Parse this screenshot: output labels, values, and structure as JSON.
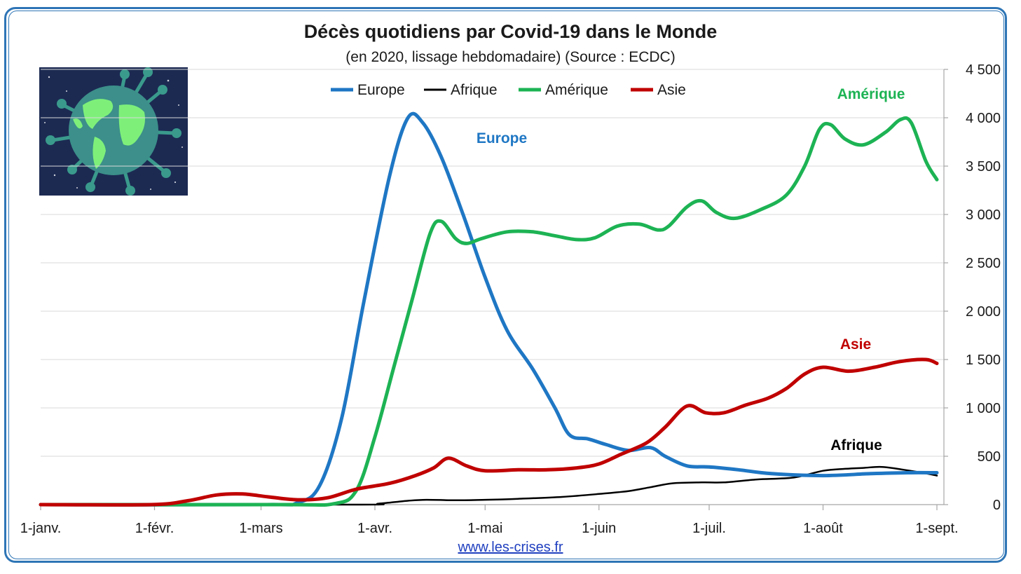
{
  "title": "Décès quotidiens par Covid-19 dans le Monde",
  "subtitle": "(en 2020, lissage hebdomadaire) (Source : ECDC)",
  "footer_link": "www.les-crises.fr",
  "image_icon": "covid-globe-illustration",
  "colors": {
    "frame": "#2e75b6",
    "Europe": "#1f77c4",
    "Afrique": "#000000",
    "Amérique": "#1db354",
    "Asie": "#c00000"
  },
  "chart_data": {
    "type": "line",
    "title": "Décès quotidiens par Covid-19 dans le Monde",
    "subtitle": "(en 2020, lissage hebdomadaire) (Source : ECDC)",
    "x_unit": "day of year 2020 (0 = 1 janvier)",
    "x_ticks": [
      {
        "label": "1-janv.",
        "day": 0
      },
      {
        "label": "1-févr.",
        "day": 31
      },
      {
        "label": "1-mars",
        "day": 60
      },
      {
        "label": "1-avr.",
        "day": 91
      },
      {
        "label": "1-mai",
        "day": 121
      },
      {
        "label": "1-juin",
        "day": 152
      },
      {
        "label": "1-juil.",
        "day": 182
      },
      {
        "label": "1-août",
        "day": 213
      },
      {
        "label": "1-sept.",
        "day": 244
      }
    ],
    "xlim": [
      0,
      244
    ],
    "ylim": [
      0,
      4500
    ],
    "y_ticks": [
      {
        "label": "0",
        "value": 0
      },
      {
        "label": "500",
        "value": 500
      },
      {
        "label": "1 000",
        "value": 1000
      },
      {
        "label": "1 500",
        "value": 1500
      },
      {
        "label": "2 000",
        "value": 2000
      },
      {
        "label": "2 500",
        "value": 2500
      },
      {
        "label": "3 000",
        "value": 3000
      },
      {
        "label": "3 500",
        "value": 3500
      },
      {
        "label": "4 000",
        "value": 4000
      },
      {
        "label": "4 500",
        "value": 4500
      }
    ],
    "y_axis_position": "right",
    "grid": true,
    "legend_position": "top-center",
    "series": [
      {
        "name": "Europe",
        "annotation": "Europe",
        "points": [
          [
            0,
            0
          ],
          [
            60,
            0
          ],
          [
            70,
            20
          ],
          [
            76,
            200
          ],
          [
            82,
            900
          ],
          [
            88,
            2100
          ],
          [
            95,
            3400
          ],
          [
            100,
            4000
          ],
          [
            104,
            3950
          ],
          [
            109,
            3600
          ],
          [
            115,
            3000
          ],
          [
            121,
            2350
          ],
          [
            127,
            1800
          ],
          [
            134,
            1400
          ],
          [
            140,
            1000
          ],
          [
            144,
            720
          ],
          [
            149,
            680
          ],
          [
            154,
            620
          ],
          [
            160,
            560
          ],
          [
            166,
            590
          ],
          [
            170,
            500
          ],
          [
            176,
            400
          ],
          [
            182,
            390
          ],
          [
            190,
            360
          ],
          [
            199,
            320
          ],
          [
            213,
            300
          ],
          [
            226,
            320
          ],
          [
            236,
            330
          ],
          [
            244,
            330
          ]
        ]
      },
      {
        "name": "Afrique",
        "annotation": "Afrique",
        "points": [
          [
            0,
            0
          ],
          [
            85,
            0
          ],
          [
            92,
            10
          ],
          [
            100,
            40
          ],
          [
            105,
            50
          ],
          [
            113,
            45
          ],
          [
            121,
            50
          ],
          [
            130,
            60
          ],
          [
            142,
            80
          ],
          [
            152,
            110
          ],
          [
            160,
            140
          ],
          [
            166,
            180
          ],
          [
            172,
            220
          ],
          [
            180,
            230
          ],
          [
            186,
            230
          ],
          [
            195,
            260
          ],
          [
            205,
            280
          ],
          [
            213,
            350
          ],
          [
            219,
            370
          ],
          [
            224,
            380
          ],
          [
            229,
            390
          ],
          [
            235,
            360
          ],
          [
            240,
            330
          ],
          [
            244,
            300
          ]
        ]
      },
      {
        "name": "Amérique",
        "annotation": "Amérique",
        "points": [
          [
            0,
            0
          ],
          [
            65,
            0
          ],
          [
            80,
            10
          ],
          [
            86,
            150
          ],
          [
            91,
            700
          ],
          [
            96,
            1400
          ],
          [
            101,
            2100
          ],
          [
            106,
            2800
          ],
          [
            109,
            2930
          ],
          [
            113,
            2750
          ],
          [
            116,
            2700
          ],
          [
            120,
            2750
          ],
          [
            127,
            2820
          ],
          [
            134,
            2820
          ],
          [
            140,
            2780
          ],
          [
            146,
            2740
          ],
          [
            151,
            2760
          ],
          [
            157,
            2880
          ],
          [
            163,
            2900
          ],
          [
            168,
            2840
          ],
          [
            171,
            2880
          ],
          [
            176,
            3080
          ],
          [
            180,
            3140
          ],
          [
            184,
            3020
          ],
          [
            189,
            2960
          ],
          [
            196,
            3050
          ],
          [
            203,
            3200
          ],
          [
            208,
            3500
          ],
          [
            212,
            3880
          ],
          [
            215,
            3930
          ],
          [
            219,
            3780
          ],
          [
            224,
            3720
          ],
          [
            230,
            3850
          ],
          [
            234,
            3980
          ],
          [
            237,
            3950
          ],
          [
            241,
            3550
          ],
          [
            244,
            3360
          ]
        ]
      },
      {
        "name": "Asie",
        "annotation": "Asie",
        "points": [
          [
            0,
            0
          ],
          [
            30,
            0
          ],
          [
            40,
            40
          ],
          [
            48,
            100
          ],
          [
            55,
            110
          ],
          [
            62,
            80
          ],
          [
            70,
            50
          ],
          [
            78,
            70
          ],
          [
            86,
            160
          ],
          [
            95,
            220
          ],
          [
            102,
            300
          ],
          [
            107,
            380
          ],
          [
            111,
            480
          ],
          [
            116,
            400
          ],
          [
            121,
            350
          ],
          [
            130,
            360
          ],
          [
            138,
            360
          ],
          [
            146,
            380
          ],
          [
            152,
            420
          ],
          [
            158,
            520
          ],
          [
            165,
            640
          ],
          [
            170,
            800
          ],
          [
            176,
            1020
          ],
          [
            181,
            950
          ],
          [
            186,
            950
          ],
          [
            192,
            1030
          ],
          [
            198,
            1100
          ],
          [
            203,
            1200
          ],
          [
            208,
            1350
          ],
          [
            213,
            1420
          ],
          [
            220,
            1380
          ],
          [
            227,
            1420
          ],
          [
            234,
            1480
          ],
          [
            241,
            1500
          ],
          [
            244,
            1460
          ]
        ]
      }
    ]
  }
}
